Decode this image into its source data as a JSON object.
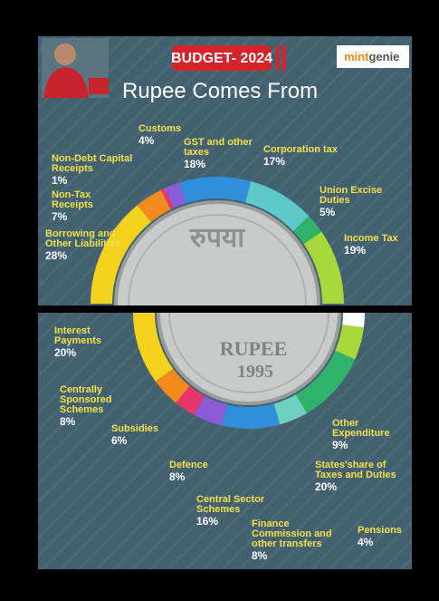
{
  "header": {
    "badge": "BUDGET- 2024",
    "brand_a": "mint",
    "brand_b": "genie"
  },
  "coin": {
    "top": "रुपया",
    "bottom": "RUPEE",
    "year": "1995"
  },
  "chart_data": [
    {
      "type": "pie",
      "title": "Rupee Comes From",
      "categories": [
        "Borrowing and Other Liabilities",
        "Non-Tax Receipts",
        "Non-Debt Capital Receipts",
        "Customs",
        "GST and other taxes",
        "Corporation tax",
        "Union Excise Duties",
        "Income Tax"
      ],
      "values": [
        28,
        7,
        1,
        4,
        18,
        17,
        5,
        19
      ],
      "value_labels": [
        "28%",
        "7%",
        "1%",
        "4%",
        "18%",
        "17%",
        "5%",
        "19%"
      ],
      "colors": [
        "#f3d21c",
        "#f28a1c",
        "#e8356b",
        "#8c5bd6",
        "#2f8fd8",
        "#5fc8c8",
        "#2fb36a",
        "#a6d93a"
      ]
    },
    {
      "type": "pie",
      "categories": [
        "Interest Payments",
        "Centrally Sponsored Schemes",
        "Subsidies",
        "Defence",
        "Central Sector Schemes",
        "Finance Commission and other transfers",
        "States'share of Taxes and Duties",
        "Other Expenditure",
        "Pensions"
      ],
      "values": [
        20,
        8,
        6,
        8,
        16,
        8,
        20,
        9,
        4
      ],
      "value_labels": [
        "20%",
        "8%",
        "6%",
        "8%",
        "16%",
        "8%",
        "20%",
        "9%",
        "4%"
      ],
      "colors": [
        "#f3d21c",
        "#f28a1c",
        "#e8356b",
        "#8c5bd6",
        "#2f8fd8",
        "#6fd0c0",
        "#2fb36a",
        "#a6d93a",
        "#ffffff"
      ]
    }
  ]
}
